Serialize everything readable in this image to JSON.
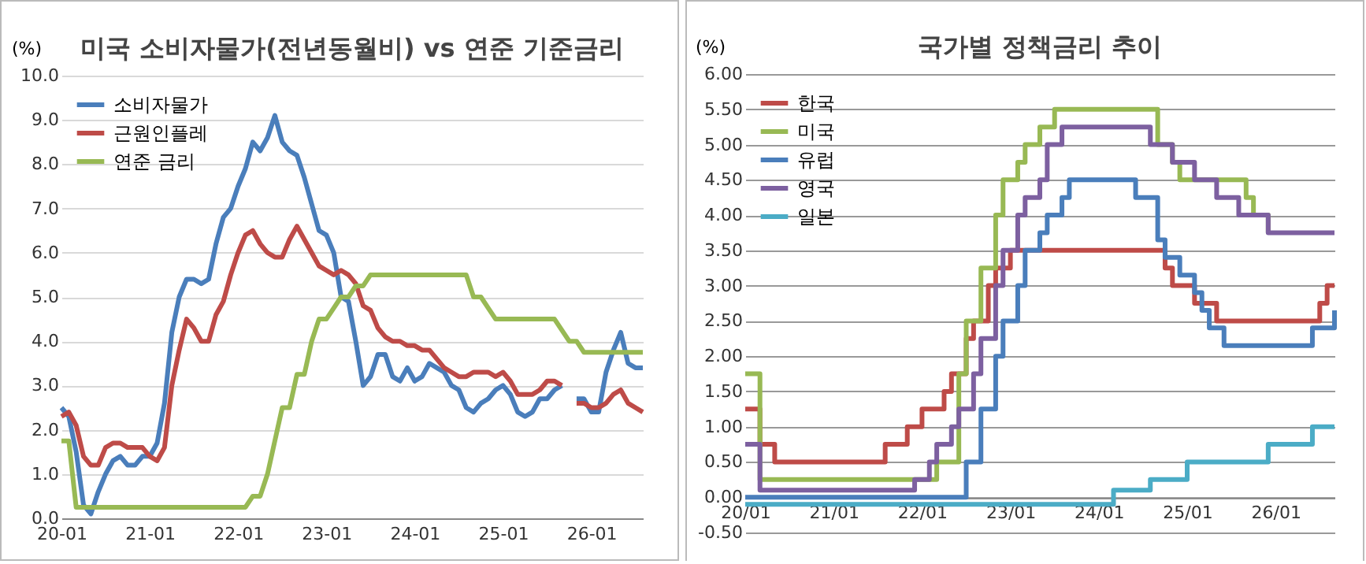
{
  "chart_data": [
    {
      "type": "line",
      "title": "미국 소비자물가(전년동월비) vs 연준 기준금리",
      "ylabel": "(%)",
      "legend": "top left",
      "grid": "y",
      "categories": [
        "20-01",
        null,
        null,
        null,
        null,
        null,
        null,
        null,
        null,
        null,
        null,
        null,
        "21-01",
        null,
        null,
        null,
        null,
        null,
        null,
        null,
        null,
        null,
        null,
        null,
        "22-01",
        null,
        null,
        null,
        null,
        null,
        null,
        null,
        null,
        null,
        null,
        null,
        "23-01",
        null,
        null,
        null,
        null,
        null,
        null,
        null,
        null,
        null,
        null,
        null,
        "24-01",
        null,
        null,
        null,
        null,
        null,
        null,
        null,
        null,
        null,
        null,
        null,
        "25-01",
        null,
        null,
        null,
        null,
        null,
        null,
        null,
        null,
        null,
        null,
        null,
        "26-01",
        null,
        null,
        null,
        null,
        null,
        null,
        null
      ],
      "ylim": [
        0,
        10
      ],
      "yticks": [
        {
          "value": 0,
          "label": "0.0"
        },
        {
          "value": 1,
          "label": "1.0"
        },
        {
          "value": 2,
          "label": "2.0"
        },
        {
          "value": 3,
          "label": "3.0"
        },
        {
          "value": 4,
          "label": "4.0"
        },
        {
          "value": 5,
          "label": "5.0"
        },
        {
          "value": 6,
          "label": "6.0"
        },
        {
          "value": 7,
          "label": "7.0"
        },
        {
          "value": 8,
          "label": "8.0"
        },
        {
          "value": 9,
          "label": "9.0"
        },
        {
          "value": 10,
          "label": "10.0"
        }
      ],
      "series": [
        {
          "name": "소비자물가",
          "color": "#4a7ebb",
          "values": [
            2.5,
            2.3,
            1.5,
            0.3,
            0.1,
            0.6,
            1.0,
            1.3,
            1.4,
            1.2,
            1.2,
            1.4,
            1.4,
            1.7,
            2.6,
            4.2,
            5.0,
            5.4,
            5.4,
            5.3,
            5.4,
            6.2,
            6.8,
            7.0,
            7.5,
            7.9,
            8.5,
            8.3,
            8.6,
            9.1,
            8.5,
            8.3,
            8.2,
            7.7,
            7.1,
            6.5,
            6.4,
            6.0,
            5.0,
            4.9,
            4.0,
            3.0,
            3.2,
            3.7,
            3.7,
            3.2,
            3.1,
            3.4,
            3.1,
            3.2,
            3.5,
            3.4,
            3.3,
            3.0,
            2.9,
            2.5,
            2.4,
            2.6,
            2.7,
            2.9,
            3.0,
            2.8,
            2.4,
            2.3,
            2.4,
            2.7,
            2.7,
            2.9,
            3.0,
            null,
            2.7,
            2.7,
            2.4,
            2.4,
            3.3,
            3.8,
            4.2,
            3.5,
            3.4,
            3.4
          ]
        },
        {
          "name": "근원인플레",
          "color": "#be4b48",
          "values": [
            2.3,
            2.4,
            2.1,
            1.4,
            1.2,
            1.2,
            1.6,
            1.7,
            1.7,
            1.6,
            1.6,
            1.6,
            1.4,
            1.3,
            1.6,
            3.0,
            3.8,
            4.5,
            4.3,
            4.0,
            4.0,
            4.6,
            4.9,
            5.5,
            6.0,
            6.4,
            6.5,
            6.2,
            6.0,
            5.9,
            5.9,
            6.3,
            6.6,
            6.3,
            6.0,
            5.7,
            5.6,
            5.5,
            5.6,
            5.5,
            5.3,
            4.8,
            4.7,
            4.3,
            4.1,
            4.0,
            4.0,
            3.9,
            3.9,
            3.8,
            3.8,
            3.6,
            3.4,
            3.3,
            3.2,
            3.2,
            3.3,
            3.3,
            3.3,
            3.2,
            3.3,
            3.1,
            2.8,
            2.8,
            2.8,
            2.9,
            3.1,
            3.1,
            3.0,
            null,
            2.6,
            2.6,
            2.5,
            2.5,
            2.6,
            2.8,
            2.9,
            2.6,
            2.5,
            2.4
          ]
        },
        {
          "name": "연준 금리",
          "color": "#98b954",
          "values": [
            1.75,
            1.75,
            0.25,
            0.25,
            0.25,
            0.25,
            0.25,
            0.25,
            0.25,
            0.25,
            0.25,
            0.25,
            0.25,
            0.25,
            0.25,
            0.25,
            0.25,
            0.25,
            0.25,
            0.25,
            0.25,
            0.25,
            0.25,
            0.25,
            0.25,
            0.25,
            0.5,
            0.5,
            1.0,
            1.75,
            2.5,
            2.5,
            3.25,
            3.25,
            4.0,
            4.5,
            4.5,
            4.75,
            5.0,
            5.0,
            5.25,
            5.25,
            5.5,
            5.5,
            5.5,
            5.5,
            5.5,
            5.5,
            5.5,
            5.5,
            5.5,
            5.5,
            5.5,
            5.5,
            5.5,
            5.5,
            5.0,
            5.0,
            4.75,
            4.5,
            4.5,
            4.5,
            4.5,
            4.5,
            4.5,
            4.5,
            4.5,
            4.5,
            4.25,
            4.0,
            4.0,
            3.75,
            3.75,
            3.75,
            3.75,
            3.75,
            3.75,
            3.75,
            3.75,
            3.75
          ]
        }
      ]
    },
    {
      "type": "step",
      "title": "국가별 정책금리 추이",
      "ylabel": "(%)",
      "legend": "top left",
      "grid": "y",
      "categories": [
        "20/01",
        null,
        null,
        null,
        null,
        null,
        null,
        null,
        null,
        null,
        null,
        null,
        "21/01",
        null,
        null,
        null,
        null,
        null,
        null,
        null,
        null,
        null,
        null,
        null,
        "22/01",
        null,
        null,
        null,
        null,
        null,
        null,
        null,
        null,
        null,
        null,
        null,
        "23/01",
        null,
        null,
        null,
        null,
        null,
        null,
        null,
        null,
        null,
        null,
        null,
        "24/01",
        null,
        null,
        null,
        null,
        null,
        null,
        null,
        null,
        null,
        null,
        null,
        "25/01",
        null,
        null,
        null,
        null,
        null,
        null,
        null,
        null,
        null,
        null,
        null,
        "26/01",
        null,
        null,
        null,
        null,
        null,
        null,
        null,
        null
      ],
      "ylim": [
        -0.5,
        6
      ],
      "yticks": [
        {
          "value": -0.5,
          "label": "-0.50"
        },
        {
          "value": 0,
          "label": "0.00"
        },
        {
          "value": 0.5,
          "label": "0.50"
        },
        {
          "value": 1,
          "label": "1.00"
        },
        {
          "value": 1.5,
          "label": "1.50"
        },
        {
          "value": 2,
          "label": "2.00"
        },
        {
          "value": 2.5,
          "label": "2.50"
        },
        {
          "value": 3,
          "label": "3.00"
        },
        {
          "value": 3.5,
          "label": "3.50"
        },
        {
          "value": 4,
          "label": "4.00"
        },
        {
          "value": 4.5,
          "label": "4.50"
        },
        {
          "value": 5,
          "label": "5.00"
        },
        {
          "value": 5.5,
          "label": "5.50"
        },
        {
          "value": 6,
          "label": "6.00"
        }
      ],
      "series": [
        {
          "name": "한국",
          "color": "#be4b48",
          "values": [
            1.25,
            1.25,
            0.75,
            0.75,
            0.5,
            0.5,
            0.5,
            0.5,
            0.5,
            0.5,
            0.5,
            0.5,
            0.5,
            0.5,
            0.5,
            0.5,
            0.5,
            0.5,
            0.5,
            0.75,
            0.75,
            0.75,
            1.0,
            1.0,
            1.25,
            1.25,
            1.25,
            1.5,
            1.75,
            1.75,
            2.25,
            2.5,
            2.5,
            3.0,
            3.25,
            3.25,
            3.5,
            3.5,
            3.5,
            3.5,
            3.5,
            3.5,
            3.5,
            3.5,
            3.5,
            3.5,
            3.5,
            3.5,
            3.5,
            3.5,
            3.5,
            3.5,
            3.5,
            3.5,
            3.5,
            3.5,
            3.5,
            3.25,
            3.0,
            3.0,
            3.0,
            2.75,
            2.75,
            2.75,
            2.5,
            2.5,
            2.5,
            2.5,
            2.5,
            2.5,
            2.5,
            2.5,
            2.5,
            2.5,
            2.5,
            2.5,
            2.5,
            2.5,
            2.75,
            3.0,
            3.0
          ]
        },
        {
          "name": "미국",
          "color": "#98b954",
          "values": [
            1.75,
            1.75,
            0.25,
            0.25,
            0.25,
            0.25,
            0.25,
            0.25,
            0.25,
            0.25,
            0.25,
            0.25,
            0.25,
            0.25,
            0.25,
            0.25,
            0.25,
            0.25,
            0.25,
            0.25,
            0.25,
            0.25,
            0.25,
            0.25,
            0.25,
            0.25,
            0.5,
            0.5,
            0.5,
            1.75,
            2.5,
            2.5,
            3.25,
            3.25,
            4.0,
            4.5,
            4.5,
            4.75,
            5.0,
            5.0,
            5.25,
            5.25,
            5.5,
            5.5,
            5.5,
            5.5,
            5.5,
            5.5,
            5.5,
            5.5,
            5.5,
            5.5,
            5.5,
            5.5,
            5.5,
            5.5,
            5.0,
            5.0,
            4.75,
            4.5,
            4.5,
            4.5,
            4.5,
            4.5,
            4.5,
            4.5,
            4.5,
            4.5,
            4.25,
            4.0,
            4.0,
            3.75,
            null,
            null,
            null,
            null,
            null,
            null,
            null,
            null,
            null
          ]
        },
        {
          "name": "유럽",
          "color": "#4a7ebb",
          "values": [
            0.0,
            0.0,
            0.0,
            0.0,
            0.0,
            0.0,
            0.0,
            0.0,
            0.0,
            0.0,
            0.0,
            0.0,
            0.0,
            0.0,
            0.0,
            0.0,
            0.0,
            0.0,
            0.0,
            0.0,
            0.0,
            0.0,
            0.0,
            0.0,
            0.0,
            0.0,
            0.0,
            0.0,
            0.0,
            0.0,
            0.5,
            0.5,
            1.25,
            1.25,
            2.0,
            2.5,
            2.5,
            3.0,
            3.5,
            3.5,
            3.75,
            4.0,
            4.0,
            4.25,
            4.5,
            4.5,
            4.5,
            4.5,
            4.5,
            4.5,
            4.5,
            4.5,
            4.5,
            4.25,
            4.25,
            4.25,
            3.65,
            3.4,
            3.4,
            3.15,
            3.15,
            2.9,
            2.65,
            2.4,
            2.4,
            2.15,
            2.15,
            2.15,
            2.15,
            2.15,
            2.15,
            2.15,
            2.15,
            2.15,
            2.15,
            2.15,
            2.15,
            2.4,
            2.4,
            2.4,
            2.65
          ]
        },
        {
          "name": "영국",
          "color": "#7d60a0",
          "values": [
            0.75,
            0.75,
            0.1,
            0.1,
            0.1,
            0.1,
            0.1,
            0.1,
            0.1,
            0.1,
            0.1,
            0.1,
            0.1,
            0.1,
            0.1,
            0.1,
            0.1,
            0.1,
            0.1,
            0.1,
            0.1,
            0.1,
            0.1,
            0.25,
            0.25,
            0.5,
            0.75,
            0.75,
            1.0,
            1.25,
            1.25,
            1.75,
            2.25,
            2.25,
            3.0,
            3.5,
            3.5,
            4.0,
            4.25,
            4.25,
            4.5,
            5.0,
            5.0,
            5.25,
            5.25,
            5.25,
            5.25,
            5.25,
            5.25,
            5.25,
            5.25,
            5.25,
            5.25,
            5.25,
            5.25,
            5.0,
            5.0,
            5.0,
            4.75,
            4.75,
            4.75,
            4.5,
            4.5,
            4.5,
            4.25,
            4.25,
            4.25,
            4.0,
            4.0,
            4.0,
            4.0,
            3.75,
            3.75,
            3.75,
            3.75,
            3.75,
            3.75,
            3.75,
            3.75,
            3.75,
            3.75
          ]
        },
        {
          "name": "일본",
          "color": "#4bacc6",
          "values": [
            -0.1,
            -0.1,
            -0.1,
            -0.1,
            -0.1,
            -0.1,
            -0.1,
            -0.1,
            -0.1,
            -0.1,
            -0.1,
            -0.1,
            -0.1,
            -0.1,
            -0.1,
            -0.1,
            -0.1,
            -0.1,
            -0.1,
            -0.1,
            -0.1,
            -0.1,
            -0.1,
            -0.1,
            -0.1,
            -0.1,
            -0.1,
            -0.1,
            -0.1,
            -0.1,
            -0.1,
            -0.1,
            -0.1,
            -0.1,
            -0.1,
            -0.1,
            -0.1,
            -0.1,
            -0.1,
            -0.1,
            -0.1,
            -0.1,
            -0.1,
            -0.1,
            -0.1,
            -0.1,
            -0.1,
            -0.1,
            -0.1,
            -0.1,
            0.1,
            0.1,
            0.1,
            0.1,
            0.1,
            0.25,
            0.25,
            0.25,
            0.25,
            0.25,
            0.5,
            0.5,
            0.5,
            0.5,
            0.5,
            0.5,
            0.5,
            0.5,
            0.5,
            0.5,
            0.5,
            0.75,
            0.75,
            0.75,
            0.75,
            0.75,
            0.75,
            1.0,
            1.0,
            1.0,
            1.0
          ]
        }
      ]
    }
  ]
}
